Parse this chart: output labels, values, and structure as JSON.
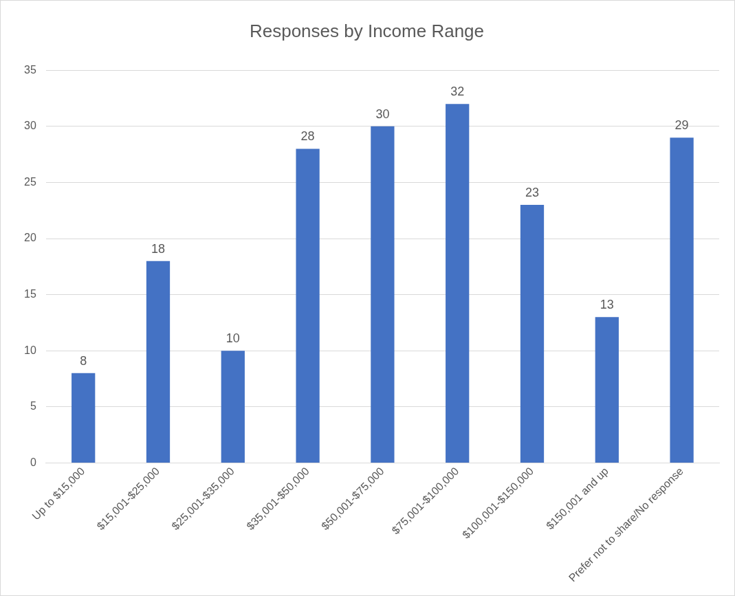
{
  "chart_data": {
    "type": "bar",
    "title": "Responses by Income Range",
    "categories": [
      "Up to $15,000",
      "$15,001-$25,000",
      "$25,001-$35,000",
      "$35,001-$50,000",
      "$50,001-$75,000",
      "$75,001-$100,000",
      "$100,001-$150,000",
      "$150,001 and up",
      "Prefer not to share/No response"
    ],
    "values": [
      8,
      18,
      10,
      28,
      30,
      32,
      23,
      13,
      29
    ],
    "color": "#4472c4",
    "ylim": [
      0,
      35
    ],
    "yticks": [
      0,
      5,
      10,
      15,
      20,
      25,
      30,
      35
    ],
    "grid": "y",
    "data_labels": true,
    "legend": false
  }
}
